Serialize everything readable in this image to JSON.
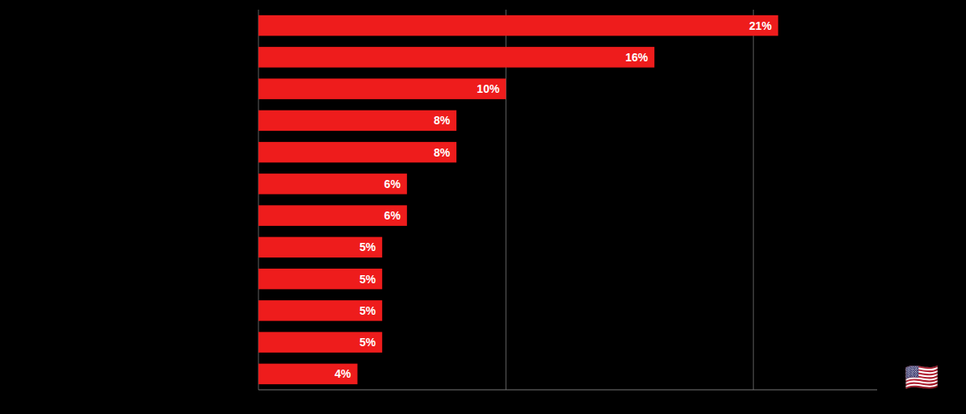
{
  "chart_data": {
    "type": "bar",
    "orientation": "horizontal",
    "categories": [
      null,
      null,
      null,
      null,
      null,
      null,
      null,
      null,
      null,
      null,
      null,
      null
    ],
    "values": [
      21,
      16,
      10,
      8,
      8,
      6,
      6,
      5,
      5,
      5,
      5,
      4
    ],
    "value_labels": [
      "21%",
      "16%",
      "10%",
      "8%",
      "8%",
      "6%",
      "6%",
      "5%",
      "5%",
      "5%",
      "5%",
      "4%"
    ],
    "data_labels": true,
    "color": "#ee1c1c",
    "xlim": [
      0,
      25
    ],
    "xticks": [
      0,
      10,
      20
    ],
    "grid": true,
    "tick_labels": false,
    "annotations": [
      "🇺🇸"
    ]
  }
}
